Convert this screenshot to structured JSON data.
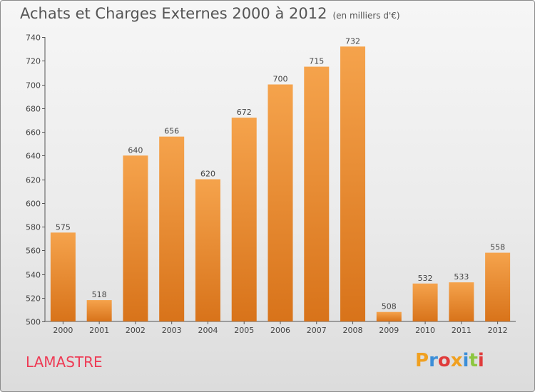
{
  "header": {
    "title": "Achats et Charges Externes 2000 à 2012",
    "subtitle": "(en milliers d'€)"
  },
  "location": "LAMASTRE",
  "brand": {
    "letters": [
      "P",
      "r",
      "o",
      "x",
      "i",
      "t",
      "i"
    ],
    "colors": [
      "#f0a020",
      "#3b8ed8",
      "#e03b3b",
      "#f0a020",
      "#3b8ed8",
      "#8cc63f",
      "#e03b3b"
    ]
  },
  "chart_data": {
    "type": "bar",
    "categories": [
      "2000",
      "2001",
      "2002",
      "2003",
      "2004",
      "2005",
      "2006",
      "2007",
      "2008",
      "2009",
      "2010",
      "2011",
      "2012"
    ],
    "values": [
      575,
      518,
      640,
      656,
      620,
      672,
      700,
      715,
      732,
      508,
      532,
      533,
      558
    ],
    "title": "Achats et Charges Externes 2000 à 2012",
    "subtitle": "(en milliers d'€)",
    "ylim": [
      500,
      740
    ],
    "yticks": [
      500,
      520,
      540,
      560,
      580,
      600,
      620,
      640,
      660,
      680,
      700,
      720,
      740
    ],
    "grid": false,
    "bar_color_top": "#f5a34c",
    "bar_color_bottom": "#d8731a"
  }
}
